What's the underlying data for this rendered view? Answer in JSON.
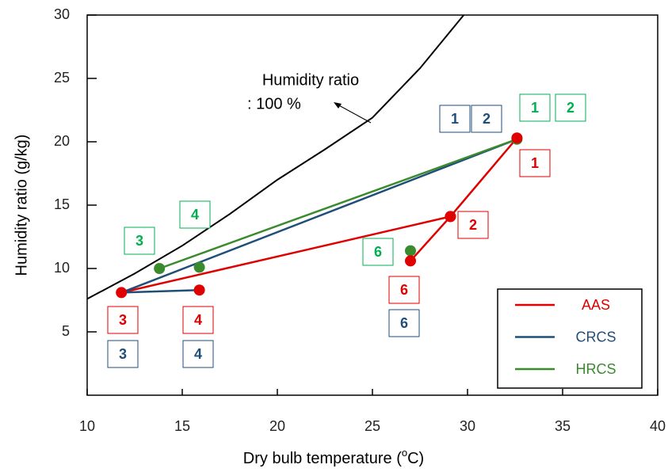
{
  "chart_data": {
    "type": "line",
    "xlabel_parts": [
      "Dry bulb temperature (",
      "o",
      "C)"
    ],
    "ylabel": "Humidity ratio (g/kg)",
    "xlim": [
      10,
      40
    ],
    "xticks": [
      10,
      15,
      20,
      25,
      30,
      35,
      40
    ],
    "ylim": [
      0,
      30
    ],
    "yticks": [
      5,
      10,
      15,
      20,
      25,
      30
    ],
    "curve": {
      "x": [
        10,
        12.5,
        15,
        17.5,
        20,
        22.5,
        25,
        27.5,
        29.8
      ],
      "y": [
        7.6,
        9.6,
        11.8,
        14.3,
        17,
        19.4,
        21.9,
        25.8,
        30
      ],
      "color": "#000000"
    },
    "curve_label": [
      "Humidity ratio",
      ": 100 %"
    ],
    "series": [
      {
        "name": "AAS",
        "color": "#e00000",
        "markers": true,
        "x": [
          15.9,
          null,
          11.8,
          29.1,
          32.6,
          null,
          29.1,
          27.0
        ],
        "y": [
          8.3,
          null,
          8.1,
          14.1,
          20.3,
          null,
          14.1,
          10.6
        ]
      },
      {
        "name": "CRCS",
        "color": "#1f4e79",
        "markers": false,
        "x": [
          15.9,
          11.8,
          32.6
        ],
        "y": [
          8.3,
          8.1,
          20.2
        ]
      },
      {
        "name": "HRCS",
        "color": "#3a8a2e",
        "markers": true,
        "x": [
          15.9,
          null,
          13.8,
          32.6,
          null,
          27.0
        ],
        "y": [
          10.1,
          null,
          10.0,
          20.2,
          null,
          11.4
        ]
      }
    ],
    "annotations": [
      {
        "text": "1",
        "color": "#1f4e79"
      },
      {
        "text": "2",
        "color": "#1f4e79"
      },
      {
        "text": "1",
        "color": "#00b050"
      },
      {
        "text": "2",
        "color": "#00b050"
      },
      {
        "text": "1",
        "color": "#e00000"
      },
      {
        "text": "2",
        "color": "#e00000"
      },
      {
        "text": "4",
        "color": "#00b050"
      },
      {
        "text": "3",
        "color": "#00b050"
      },
      {
        "text": "6",
        "color": "#00b050"
      },
      {
        "text": "6",
        "color": "#e00000"
      },
      {
        "text": "6",
        "color": "#1f4e79"
      },
      {
        "text": "3",
        "color": "#e00000"
      },
      {
        "text": "4",
        "color": "#e00000"
      },
      {
        "text": "3",
        "color": "#1f4e79"
      },
      {
        "text": "4",
        "color": "#1f4e79"
      }
    ]
  }
}
